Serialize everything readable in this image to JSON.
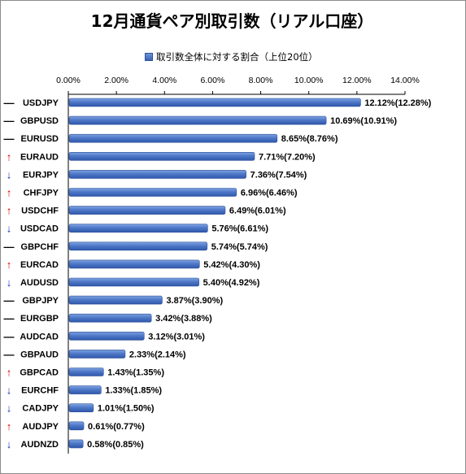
{
  "title": "12月通貨ペア別取引数（リアル口座）",
  "legend": "取引数全体に対する割合（上位20位）",
  "colors": {
    "bar_top": "#7ea3e0",
    "bar_bottom": "#2f58ab",
    "up_arrow": "#e00000",
    "down_arrow": "#1f2fb8",
    "flat": "#000000"
  },
  "chart_data": {
    "type": "bar",
    "orientation": "horizontal",
    "title": "12月通貨ペア別取引数（リアル口座）",
    "legend_label": "取引数全体に対する割合（上位20位）",
    "legend_position": "top",
    "xlim": [
      0,
      14
    ],
    "xticks": [
      "0.00%",
      "2.00%",
      "4.00%",
      "6.00%",
      "8.00%",
      "10.00%",
      "12.00%",
      "14.00%"
    ],
    "grid": false,
    "categories": [
      "USDJPY",
      "GBPUSD",
      "EURUSD",
      "EURAUD",
      "EURJPY",
      "CHFJPY",
      "USDCHF",
      "USDCAD",
      "GBPCHF",
      "EURCAD",
      "AUDUSD",
      "GBPJPY",
      "EURGBP",
      "AUDCAD",
      "GBPAUD",
      "GBPCAD",
      "EURCHF",
      "CADJPY",
      "AUDJPY",
      "AUDNZD"
    ],
    "markers": [
      "—",
      "—",
      "—",
      "↑",
      "↓",
      "↑",
      "↑",
      "↓",
      "—",
      "↑",
      "↓",
      "—",
      "—",
      "—",
      "—",
      "↑",
      "↓",
      "↓",
      "↑",
      "↓"
    ],
    "marker_types": [
      "flat",
      "flat",
      "flat",
      "up",
      "down",
      "up",
      "up",
      "down",
      "flat",
      "up",
      "down",
      "flat",
      "flat",
      "flat",
      "flat",
      "up",
      "down",
      "down",
      "up",
      "down"
    ],
    "values": [
      12.12,
      10.69,
      8.65,
      7.71,
      7.36,
      6.96,
      6.49,
      5.76,
      5.74,
      5.42,
      5.4,
      3.87,
      3.42,
      3.12,
      2.33,
      1.43,
      1.33,
      1.01,
      0.61,
      0.58
    ],
    "previous_values": [
      12.28,
      10.91,
      8.76,
      7.2,
      7.54,
      6.46,
      6.01,
      6.61,
      5.74,
      4.3,
      4.92,
      3.9,
      3.88,
      3.01,
      2.14,
      1.35,
      1.85,
      1.5,
      0.77,
      0.85
    ],
    "data_labels": [
      "12.12%(12.28%)",
      "10.69%(10.91%)",
      "8.65%(8.76%)",
      "7.71%(7.20%)",
      "7.36%(7.54%)",
      "6.96%(6.46%)",
      "6.49%(6.01%)",
      "5.76%(6.61%)",
      "5.74%(5.74%)",
      "5.42%(4.30%)",
      "5.40%(4.92%)",
      "3.87%(3.90%)",
      "3.42%(3.88%)",
      "3.12%(3.01%)",
      "2.33%(2.14%)",
      "1.43%(1.35%)",
      "1.33%(1.85%)",
      "1.01%(1.50%)",
      "0.61%(0.77%)",
      "0.58%(0.85%)"
    ]
  }
}
